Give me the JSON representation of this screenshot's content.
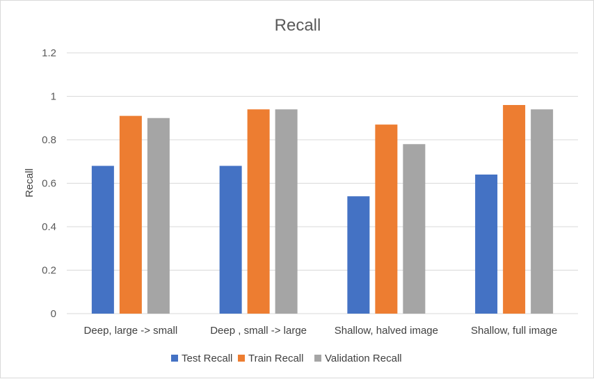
{
  "chart_data": {
    "type": "bar",
    "title": "Recall",
    "xlabel": "",
    "ylabel": "Recall",
    "ylim": [
      0,
      1.2
    ],
    "yticks": [
      0,
      0.2,
      0.4,
      0.6,
      0.8,
      1,
      1.2
    ],
    "ytick_labels": [
      "0",
      "0.2",
      "0.4",
      "0.6",
      "0.8",
      "1",
      "1.2"
    ],
    "grid": true,
    "legend_position": "bottom",
    "categories": [
      "Deep, large -> small",
      "Deep , small -> large",
      "Shallow, halved image",
      "Shallow, full image"
    ],
    "series": [
      {
        "name": "Test Recall",
        "color": "#4472c4",
        "values": [
          0.68,
          0.68,
          0.54,
          0.64
        ]
      },
      {
        "name": "Train Recall",
        "color": "#ed7d31",
        "values": [
          0.91,
          0.94,
          0.87,
          0.96
        ]
      },
      {
        "name": "Validation Recall",
        "color": "#a5a5a5",
        "values": [
          0.9,
          0.94,
          0.78,
          0.94
        ]
      }
    ]
  }
}
